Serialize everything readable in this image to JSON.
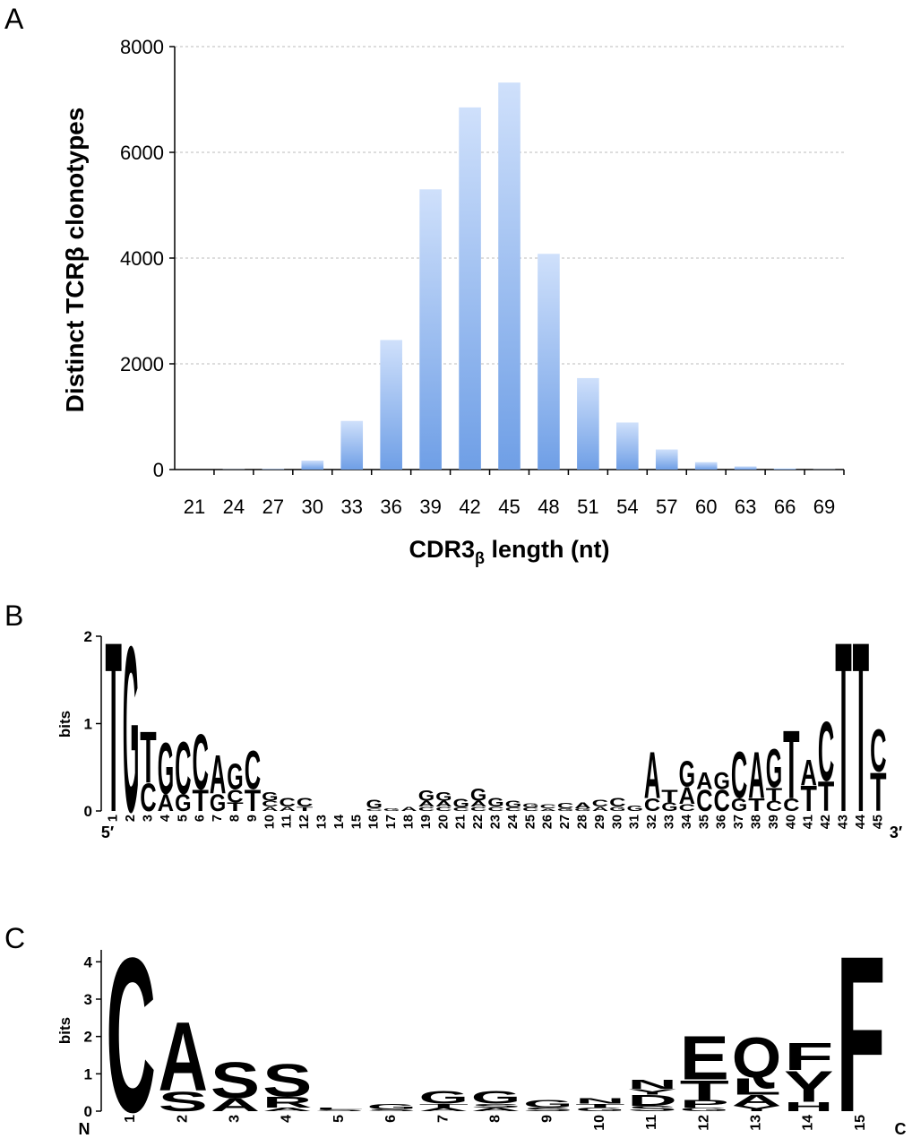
{
  "chart_data": [
    {
      "type": "bar",
      "panel": "A",
      "ylabel": "Distinct TCRβ clonotypes",
      "xlabel_parts": [
        "CDR3",
        "β",
        " length (nt)"
      ],
      "categories": [
        "21",
        "24",
        "27",
        "30",
        "33",
        "36",
        "39",
        "42",
        "45",
        "48",
        "51",
        "54",
        "57",
        "60",
        "63",
        "66",
        "69"
      ],
      "values": [
        0,
        5,
        10,
        170,
        920,
        2450,
        5300,
        6850,
        7320,
        4080,
        1730,
        890,
        380,
        140,
        60,
        20,
        5
      ],
      "color": "#6f9fe6",
      "ylim": [
        0,
        8000
      ],
      "yticks": [
        0,
        2000,
        4000,
        6000,
        8000
      ],
      "grid": true
    },
    {
      "type": "logo",
      "panel": "B",
      "ylabel": "bits",
      "x_ends": [
        "5′",
        "3′"
      ],
      "ylim": [
        0,
        2
      ],
      "yticks": [
        0,
        1,
        2
      ],
      "colors": {
        "A": "#66cc33",
        "C": "#1f2fc4",
        "G": "#f0a830",
        "T": "#c0280c"
      },
      "categories": [
        "1",
        "2",
        "3",
        "4",
        "5",
        "6",
        "7",
        "8",
        "9",
        "10",
        "11",
        "12",
        "13",
        "14",
        "15",
        "16",
        "17",
        "18",
        "19",
        "20",
        "21",
        "22",
        "23",
        "24",
        "25",
        "26",
        "27",
        "28",
        "29",
        "30",
        "31",
        "32",
        "33",
        "34",
        "35",
        "36",
        "37",
        "38",
        "39",
        "40",
        "41",
        "42",
        "43",
        "44",
        "45"
      ],
      "stacks": [
        [
          {
            "letter": "T",
            "bits": 2
          }
        ],
        [
          {
            "letter": "G",
            "bits": 1.95
          }
        ],
        [
          {
            "letter": "C",
            "bits": 0.33
          },
          {
            "letter": "T",
            "bits": 0.6
          }
        ],
        [
          {
            "letter": "A",
            "bits": 0.2
          },
          {
            "letter": "G",
            "bits": 0.6
          }
        ],
        [
          {
            "letter": "G",
            "bits": 0.2
          },
          {
            "letter": "C",
            "bits": 0.62
          }
        ],
        [
          {
            "letter": "T",
            "bits": 0.25
          },
          {
            "letter": "C",
            "bits": 0.65
          }
        ],
        [
          {
            "letter": "G",
            "bits": 0.2
          },
          {
            "letter": "A",
            "bits": 0.45
          }
        ],
        [
          {
            "letter": "T",
            "bits": 0.1
          },
          {
            "letter": "C",
            "bits": 0.15
          },
          {
            "letter": "G",
            "bits": 0.3
          }
        ],
        [
          {
            "letter": "T",
            "bits": 0.25
          },
          {
            "letter": "C",
            "bits": 0.45
          }
        ],
        [
          {
            "letter": "A",
            "bits": 0.05
          },
          {
            "letter": "C",
            "bits": 0.07
          },
          {
            "letter": "G",
            "bits": 0.1
          }
        ],
        [
          {
            "letter": "A",
            "bits": 0.05
          },
          {
            "letter": "C",
            "bits": 0.1
          }
        ],
        [
          {
            "letter": "T",
            "bits": 0.05
          },
          {
            "letter": "C",
            "bits": 0.1
          }
        ],
        [],
        [],
        [],
        [
          {
            "letter": "C",
            "bits": 0.03
          },
          {
            "letter": "G",
            "bits": 0.1
          }
        ],
        [
          {
            "letter": "G",
            "bits": 0.03
          }
        ],
        [
          {
            "letter": "A",
            "bits": 0.05
          }
        ],
        [
          {
            "letter": "C",
            "bits": 0.05
          },
          {
            "letter": "A",
            "bits": 0.07
          },
          {
            "letter": "G",
            "bits": 0.12
          }
        ],
        [
          {
            "letter": "C",
            "bits": 0.05
          },
          {
            "letter": "A",
            "bits": 0.07
          },
          {
            "letter": "G",
            "bits": 0.1
          }
        ],
        [
          {
            "letter": "C",
            "bits": 0.04
          },
          {
            "letter": "G",
            "bits": 0.1
          }
        ],
        [
          {
            "letter": "C",
            "bits": 0.05
          },
          {
            "letter": "A",
            "bits": 0.07
          },
          {
            "letter": "G",
            "bits": 0.14
          }
        ],
        [
          {
            "letter": "C",
            "bits": 0.05
          },
          {
            "letter": "G",
            "bits": 0.1
          }
        ],
        [
          {
            "letter": "C",
            "bits": 0.04
          },
          {
            "letter": "G",
            "bits": 0.08
          }
        ],
        [
          {
            "letter": "C",
            "bits": 0.04
          },
          {
            "letter": "G",
            "bits": 0.05
          }
        ],
        [
          {
            "letter": "A",
            "bits": 0.03
          },
          {
            "letter": "C",
            "bits": 0.05
          }
        ],
        [
          {
            "letter": "G",
            "bits": 0.03
          },
          {
            "letter": "C",
            "bits": 0.06
          }
        ],
        [
          {
            "letter": "G",
            "bits": 0.03
          },
          {
            "letter": "A",
            "bits": 0.07
          }
        ],
        [
          {
            "letter": "A",
            "bits": 0.05
          },
          {
            "letter": "C",
            "bits": 0.08
          }
        ],
        [
          {
            "letter": "G",
            "bits": 0.05
          },
          {
            "letter": "C",
            "bits": 0.1
          }
        ],
        [
          {
            "letter": "G",
            "bits": 0.06
          }
        ],
        [
          {
            "letter": "C",
            "bits": 0.15
          },
          {
            "letter": "A",
            "bits": 0.55
          }
        ],
        [
          {
            "letter": "G",
            "bits": 0.1
          },
          {
            "letter": "T",
            "bits": 0.15
          }
        ],
        [
          {
            "letter": "C",
            "bits": 0.08
          },
          {
            "letter": "A",
            "bits": 0.2
          },
          {
            "letter": "G",
            "bits": 0.3
          }
        ],
        [
          {
            "letter": "C",
            "bits": 0.25
          },
          {
            "letter": "A",
            "bits": 0.2
          }
        ],
        [
          {
            "letter": "C",
            "bits": 0.25
          },
          {
            "letter": "G",
            "bits": 0.2
          }
        ],
        [
          {
            "letter": "G",
            "bits": 0.15
          },
          {
            "letter": "C",
            "bits": 0.55
          }
        ],
        [
          {
            "letter": "T",
            "bits": 0.15
          },
          {
            "letter": "A",
            "bits": 0.55
          }
        ],
        [
          {
            "letter": "C",
            "bits": 0.12
          },
          {
            "letter": "T",
            "bits": 0.15
          },
          {
            "letter": "G",
            "bits": 0.45
          }
        ],
        [
          {
            "letter": "C",
            "bits": 0.15
          },
          {
            "letter": "T",
            "bits": 0.8
          }
        ],
        [
          {
            "letter": "T",
            "bits": 0.3
          },
          {
            "letter": "A",
            "bits": 0.3
          }
        ],
        [
          {
            "letter": "T",
            "bits": 0.35
          },
          {
            "letter": "C",
            "bits": 0.7
          }
        ],
        [
          {
            "letter": "T",
            "bits": 2
          }
        ],
        [
          {
            "letter": "T",
            "bits": 2
          }
        ],
        [
          {
            "letter": "T",
            "bits": 0.45
          },
          {
            "letter": "C",
            "bits": 0.5
          }
        ]
      ]
    },
    {
      "type": "logo",
      "panel": "C",
      "ylabel": "bits",
      "x_ends": [
        "N",
        "C"
      ],
      "ylim": [
        0,
        4.32
      ],
      "yticks": [
        0,
        1,
        2,
        3,
        4
      ],
      "colors": {
        "C": "#6fd12e",
        "S": "#6fd12e",
        "G": "#6fd12e",
        "T": "#6fd12e",
        "Y": "#6fd12e",
        "A": "#000000",
        "F": "#000000",
        "L": "#000000",
        "P": "#000000",
        "R": "#1f3fd0",
        "H": "#1f3fd0",
        "E": "#c8280c",
        "D": "#c8280c",
        "Q": "#c43cd4",
        "N": "#c43cd4"
      },
      "categories": [
        "1",
        "2",
        "3",
        "4",
        "5",
        "6",
        "7",
        "8",
        "9",
        "10",
        "11",
        "12",
        "13",
        "14",
        "15"
      ],
      "stacks": [
        [
          {
            "letter": "C",
            "bits": 4.25
          }
        ],
        [
          {
            "letter": "S",
            "bits": 0.55
          },
          {
            "letter": "A",
            "bits": 1.9
          }
        ],
        [
          {
            "letter": "A",
            "bits": 0.35
          },
          {
            "letter": "S",
            "bits": 1.0
          }
        ],
        [
          {
            "letter": "A",
            "bits": 0.1
          },
          {
            "letter": "R",
            "bits": 0.3
          },
          {
            "letter": "S",
            "bits": 0.9
          }
        ],
        [
          {
            "letter": "S",
            "bits": 0.05
          },
          {
            "letter": "L",
            "bits": 0.05
          }
        ],
        [
          {
            "letter": "S",
            "bits": 0.05
          },
          {
            "letter": "G",
            "bits": 0.15
          }
        ],
        [
          {
            "letter": "A",
            "bits": 0.1
          },
          {
            "letter": "T",
            "bits": 0.1
          },
          {
            "letter": "G",
            "bits": 0.35
          }
        ],
        [
          {
            "letter": "A",
            "bits": 0.1
          },
          {
            "letter": "S",
            "bits": 0.1
          },
          {
            "letter": "G",
            "bits": 0.35
          }
        ],
        [
          {
            "letter": "S",
            "bits": 0.1
          },
          {
            "letter": "G",
            "bits": 0.2
          }
        ],
        [
          {
            "letter": "G",
            "bits": 0.1
          },
          {
            "letter": "T",
            "bits": 0.1
          },
          {
            "letter": "N",
            "bits": 0.15
          }
        ],
        [
          {
            "letter": "S",
            "bits": 0.15
          },
          {
            "letter": "D",
            "bits": 0.3
          },
          {
            "letter": "Y",
            "bits": 0.15
          },
          {
            "letter": "N",
            "bits": 0.25
          }
        ],
        [
          {
            "letter": "G",
            "bits": 0.1
          },
          {
            "letter": "P",
            "bits": 0.2
          },
          {
            "letter": "T",
            "bits": 0.55
          },
          {
            "letter": "E",
            "bits": 1.2
          }
        ],
        [
          {
            "letter": "Y",
            "bits": 0.15
          },
          {
            "letter": "A",
            "bits": 0.3
          },
          {
            "letter": "L",
            "bits": 0.45
          },
          {
            "letter": "Q",
            "bits": 1.1
          }
        ],
        [
          {
            "letter": "H",
            "bits": 0.25
          },
          {
            "letter": "Y",
            "bits": 0.85
          },
          {
            "letter": "F",
            "bits": 0.75
          }
        ],
        [
          {
            "letter": "F",
            "bits": 4.3
          }
        ]
      ]
    }
  ]
}
